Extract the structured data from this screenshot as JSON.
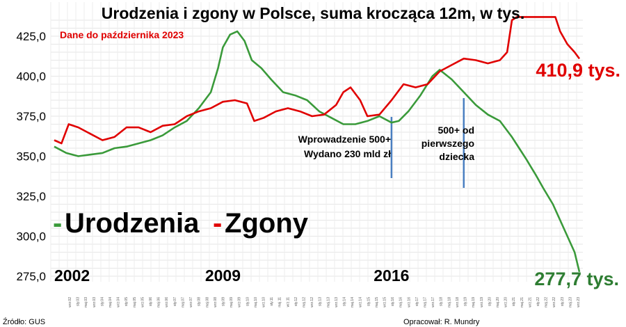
{
  "chart_data": {
    "type": "line",
    "title": "Urodzenia i zgony w Polsce, suma krocząca 12m, w tys.",
    "subtitle": "Dane do października 2023",
    "ylim": [
      275,
      437
    ],
    "yticks": [
      "425,0",
      "400,0",
      "375,0",
      "350,0",
      "325,0",
      "300,0",
      "275,0"
    ],
    "ytick_values": [
      425,
      400,
      375,
      350,
      325,
      300,
      275
    ],
    "grid": true,
    "x_start": "2002-01",
    "x_end": "2023-10",
    "years_marked": [
      "2002",
      "2009",
      "2016"
    ],
    "year_positions": [
      2002.0,
      2009.0,
      2016.0
    ],
    "x_tick_labels": [
      "wrz.02",
      "sty.03",
      "maj.03",
      "wrz.03",
      "sty.04",
      "maj.04",
      "wrz.04",
      "sty.05",
      "maj.05",
      "wrz.05",
      "sty.06",
      "maj.06",
      "wrz.06",
      "sty.07",
      "maj.07",
      "wrz.07",
      "sty.08",
      "maj.08",
      "wrz.08",
      "sty.09",
      "maj.09",
      "wrz.09",
      "sty.10",
      "maj.10",
      "wrz.10",
      "sty.11",
      "maj.11",
      "wrz.11",
      "sty.12",
      "maj.12",
      "wrz.12",
      "sty.13",
      "maj.13",
      "wrz.13",
      "sty.14",
      "maj.14",
      "wrz.14",
      "sty.15",
      "maj.15",
      "wrz.15",
      "sty.16",
      "maj.16",
      "wrz.16",
      "sty.17",
      "maj.17",
      "wrz.17",
      "sty.18",
      "maj.18",
      "wrz.18",
      "sty.19",
      "maj.19",
      "wrz.19",
      "sty.20",
      "maj.20",
      "wrz.20",
      "sty.21",
      "maj.21",
      "wrz.21",
      "sty.22",
      "maj.22",
      "wrz.22",
      "sty.23",
      "maj.23",
      "wrz.23"
    ],
    "legend": {
      "births_label": "Urodzenia",
      "deaths_label": "Zgony",
      "marker": "-"
    },
    "series": [
      {
        "name": "Urodzenia",
        "color": "#3a9a3a",
        "points": [
          [
            2002.0,
            356
          ],
          [
            2002.5,
            352
          ],
          [
            2003.0,
            350
          ],
          [
            2003.5,
            351
          ],
          [
            2004.0,
            352
          ],
          [
            2004.5,
            355
          ],
          [
            2005.0,
            356
          ],
          [
            2005.5,
            358
          ],
          [
            2006.0,
            360
          ],
          [
            2006.5,
            363
          ],
          [
            2007.0,
            368
          ],
          [
            2007.5,
            372
          ],
          [
            2008.0,
            380
          ],
          [
            2008.5,
            390
          ],
          [
            2008.8,
            405
          ],
          [
            2009.0,
            418
          ],
          [
            2009.3,
            426
          ],
          [
            2009.6,
            428
          ],
          [
            2009.9,
            422
          ],
          [
            2010.2,
            410
          ],
          [
            2010.6,
            405
          ],
          [
            2011.0,
            398
          ],
          [
            2011.5,
            390
          ],
          [
            2012.0,
            388
          ],
          [
            2012.5,
            385
          ],
          [
            2013.0,
            378
          ],
          [
            2013.5,
            374
          ],
          [
            2014.0,
            370
          ],
          [
            2014.5,
            370
          ],
          [
            2015.0,
            372
          ],
          [
            2015.5,
            375
          ],
          [
            2016.0,
            371
          ],
          [
            2016.3,
            372
          ],
          [
            2016.7,
            378
          ],
          [
            2017.2,
            388
          ],
          [
            2017.7,
            400
          ],
          [
            2018.0,
            404
          ],
          [
            2018.5,
            398
          ],
          [
            2019.0,
            390
          ],
          [
            2019.5,
            382
          ],
          [
            2020.0,
            376
          ],
          [
            2020.5,
            372
          ],
          [
            2021.0,
            362
          ],
          [
            2021.3,
            355
          ],
          [
            2021.6,
            348
          ],
          [
            2022.0,
            338
          ],
          [
            2022.3,
            330
          ],
          [
            2022.7,
            320
          ],
          [
            2023.0,
            310
          ],
          [
            2023.3,
            300
          ],
          [
            2023.6,
            290
          ],
          [
            2023.8,
            277.7
          ]
        ]
      },
      {
        "name": "Zgony",
        "color": "#e00000",
        "points": [
          [
            2002.0,
            360
          ],
          [
            2002.3,
            358
          ],
          [
            2002.6,
            370
          ],
          [
            2003.0,
            368
          ],
          [
            2003.5,
            364
          ],
          [
            2004.0,
            360
          ],
          [
            2004.5,
            362
          ],
          [
            2005.0,
            368
          ],
          [
            2005.5,
            368
          ],
          [
            2006.0,
            365
          ],
          [
            2006.5,
            369
          ],
          [
            2007.0,
            370
          ],
          [
            2007.5,
            375
          ],
          [
            2008.0,
            378
          ],
          [
            2008.5,
            380
          ],
          [
            2009.0,
            384
          ],
          [
            2009.5,
            385
          ],
          [
            2010.0,
            383
          ],
          [
            2010.3,
            372
          ],
          [
            2010.7,
            374
          ],
          [
            2011.2,
            378
          ],
          [
            2011.7,
            380
          ],
          [
            2012.2,
            378
          ],
          [
            2012.7,
            375
          ],
          [
            2013.2,
            376
          ],
          [
            2013.7,
            382
          ],
          [
            2014.0,
            390
          ],
          [
            2014.3,
            393
          ],
          [
            2014.7,
            385
          ],
          [
            2015.0,
            375
          ],
          [
            2015.5,
            376
          ],
          [
            2016.0,
            385
          ],
          [
            2016.5,
            395
          ],
          [
            2017.0,
            393
          ],
          [
            2017.5,
            395
          ],
          [
            2018.0,
            403
          ],
          [
            2018.5,
            407
          ],
          [
            2019.0,
            411
          ],
          [
            2019.5,
            410
          ],
          [
            2020.0,
            408
          ],
          [
            2020.5,
            410
          ],
          [
            2020.8,
            415
          ],
          [
            2021.0,
            435
          ],
          [
            2021.2,
            437
          ],
          [
            2022.8,
            437
          ],
          [
            2023.0,
            428
          ],
          [
            2023.3,
            420
          ],
          [
            2023.6,
            415
          ],
          [
            2023.8,
            410.9
          ]
        ]
      }
    ],
    "annotations": [
      {
        "x": 2016.0,
        "text_lines": [
          "Wprowadzenie 500+",
          "Wydano 230 mld zł"
        ]
      },
      {
        "x": 2019.0,
        "text_lines": [
          "500+ od",
          "pierwszego",
          "dziecka"
        ]
      }
    ],
    "end_labels": {
      "deaths": "410,9 tys.",
      "births": "277,7 tys."
    }
  },
  "footer": {
    "source": "Źródło: GUS",
    "author": "Opracował: R. Mundry"
  }
}
